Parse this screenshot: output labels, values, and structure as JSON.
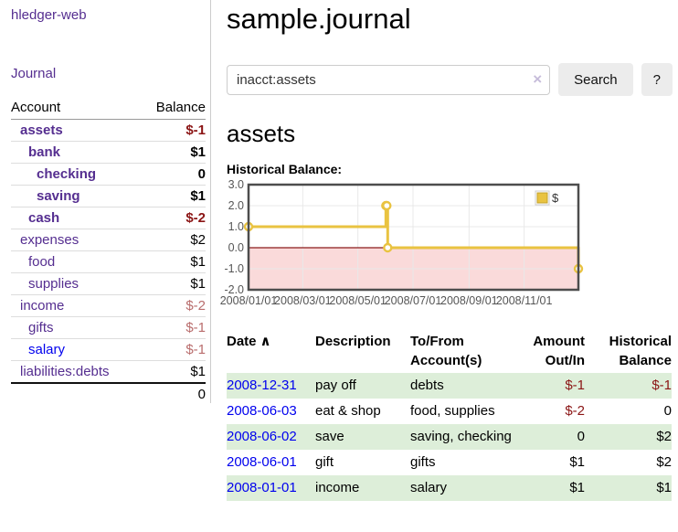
{
  "app": {
    "brand": "hledger-web",
    "nav_journal": "Journal"
  },
  "colors": {
    "link_purple": "#552e90",
    "link_blue": "#0000ee",
    "negative_strong": "#8b1515",
    "negative_dim": "#b96d6d",
    "row_stripe_green": "#ddeed9",
    "chart_line_gold": "#e9c341",
    "chart_negative_fill": "#fadada",
    "chart_zero_line": "#8b1a1a",
    "chart_border": "#4d4d4d"
  },
  "sidebar": {
    "columns": {
      "account": "Account",
      "balance": "Balance"
    },
    "accounts": [
      {
        "label": "assets",
        "depth": 1,
        "emphasis": true,
        "link_color": "purple",
        "balance": "$-1",
        "balance_tone": "negative"
      },
      {
        "label": "bank",
        "depth": 2,
        "emphasis": true,
        "link_color": "purple",
        "balance": "$1",
        "balance_tone": "normal"
      },
      {
        "label": "checking",
        "depth": 3,
        "emphasis": true,
        "link_color": "purple",
        "balance": "0",
        "balance_tone": "normal"
      },
      {
        "label": "saving",
        "depth": 3,
        "emphasis": true,
        "link_color": "purple",
        "balance": "$1",
        "balance_tone": "normal"
      },
      {
        "label": "cash",
        "depth": 2,
        "emphasis": true,
        "link_color": "purple",
        "balance": "$-2",
        "balance_tone": "negative"
      },
      {
        "label": "expenses",
        "depth": 1,
        "emphasis": false,
        "link_color": "purple",
        "balance": "$2",
        "balance_tone": "normal"
      },
      {
        "label": "food",
        "depth": 2,
        "emphasis": false,
        "link_color": "purple",
        "balance": "$1",
        "balance_tone": "normal"
      },
      {
        "label": "supplies",
        "depth": 2,
        "emphasis": false,
        "link_color": "purple",
        "balance": "$1",
        "balance_tone": "normal"
      },
      {
        "label": "income",
        "depth": 1,
        "emphasis": false,
        "link_color": "purple",
        "balance": "$-2",
        "balance_tone": "negative-dim"
      },
      {
        "label": "gifts",
        "depth": 2,
        "emphasis": false,
        "link_color": "purple",
        "balance": "$-1",
        "balance_tone": "negative-dim"
      },
      {
        "label": "salary",
        "depth": 2,
        "emphasis": false,
        "link_color": "blue",
        "balance": "$-1",
        "balance_tone": "negative-dim"
      },
      {
        "label": "liabilities:debts",
        "depth": 1,
        "emphasis": false,
        "link_color": "purple",
        "balance": "$1",
        "balance_tone": "normal"
      }
    ],
    "total": "0"
  },
  "header": {
    "title": "sample.journal"
  },
  "search": {
    "value": "inacct:assets",
    "clear_icon": "×",
    "button_label": "Search",
    "help_label": "?"
  },
  "account_page": {
    "heading": "assets",
    "chart_label": "Historical Balance:"
  },
  "chart_data": {
    "type": "line",
    "title": "Historical Balance",
    "style": "step",
    "series": [
      {
        "name": "$",
        "color": "#e9c341",
        "points": [
          {
            "x": "2008-01-01",
            "y": 1
          },
          {
            "x": "2008-06-01",
            "y": 2
          },
          {
            "x": "2008-06-02",
            "y": 2
          },
          {
            "x": "2008-06-03",
            "y": 0
          },
          {
            "x": "2008-12-31",
            "y": -1
          }
        ]
      }
    ],
    "x_range": [
      "2008-01-01",
      "2008-12-31"
    ],
    "ylim": [
      -2,
      3
    ],
    "x_ticks": [
      "2008/01/01",
      "2008/03/01",
      "2008/05/01",
      "2008/07/01",
      "2008/09/01",
      "2008/11/01"
    ],
    "y_ticks": [
      3.0,
      2.0,
      1.0,
      0.0,
      -1.0,
      -2.0
    ],
    "grid": true,
    "legend": {
      "label": "$",
      "position": "top-right"
    },
    "negative_region_fill": "#fadada",
    "zero_line_color": "#8b1a1a"
  },
  "register": {
    "columns": {
      "date": "Date",
      "sort_icon": "∧",
      "description": "Description",
      "accounts": "To/From Account(s)",
      "amount": "Amount Out/In",
      "balance": "Historical Balance"
    },
    "rows": [
      {
        "date": "2008-12-31",
        "description": "pay off",
        "accounts": "debts",
        "amount": "$-1",
        "amount_tone": "negative",
        "balance": "$-1",
        "balance_tone": "negative",
        "stripe": true
      },
      {
        "date": "2008-06-03",
        "description": "eat & shop",
        "accounts": "food, supplies",
        "amount": "$-2",
        "amount_tone": "negative",
        "balance": "0",
        "balance_tone": "normal",
        "stripe": false
      },
      {
        "date": "2008-06-02",
        "description": "save",
        "accounts": "saving, checking",
        "amount": "0",
        "amount_tone": "normal",
        "balance": "$2",
        "balance_tone": "normal",
        "stripe": true
      },
      {
        "date": "2008-06-01",
        "description": "gift",
        "accounts": "gifts",
        "amount": "$1",
        "amount_tone": "normal",
        "balance": "$2",
        "balance_tone": "normal",
        "stripe": false
      },
      {
        "date": "2008-01-01",
        "description": "income",
        "accounts": "salary",
        "amount": "$1",
        "amount_tone": "normal",
        "balance": "$1",
        "balance_tone": "normal",
        "stripe": true
      }
    ]
  }
}
